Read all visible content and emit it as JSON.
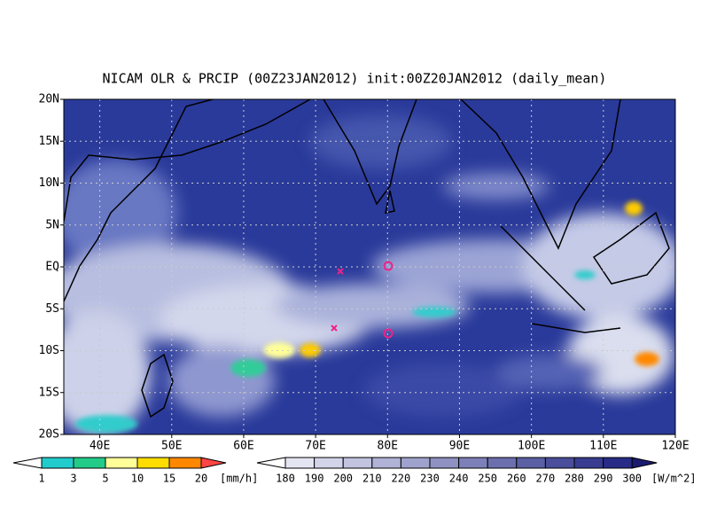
{
  "title": "NICAM OLR & PRCIP (00Z23JAN2012) init:00Z20JAN2012 (daily_mean)",
  "map": {
    "lat_labels": [
      "20N",
      "15N",
      "10N",
      "5N",
      "EQ",
      "5S",
      "10S",
      "15S",
      "20S"
    ],
    "lon_labels": [
      "40E",
      "50E",
      "60E",
      "70E",
      "80E",
      "90E",
      "100E",
      "110E",
      "120E"
    ]
  },
  "precip_legend": {
    "ticks": [
      "1",
      "3",
      "5",
      "10",
      "15",
      "20"
    ],
    "unit": "[mm/h]"
  },
  "olr_legend": {
    "ticks": [
      "180",
      "190",
      "200",
      "210",
      "220",
      "230",
      "240",
      "250",
      "260",
      "270",
      "280",
      "290",
      "300"
    ],
    "unit": "[W/m^2]"
  }
}
